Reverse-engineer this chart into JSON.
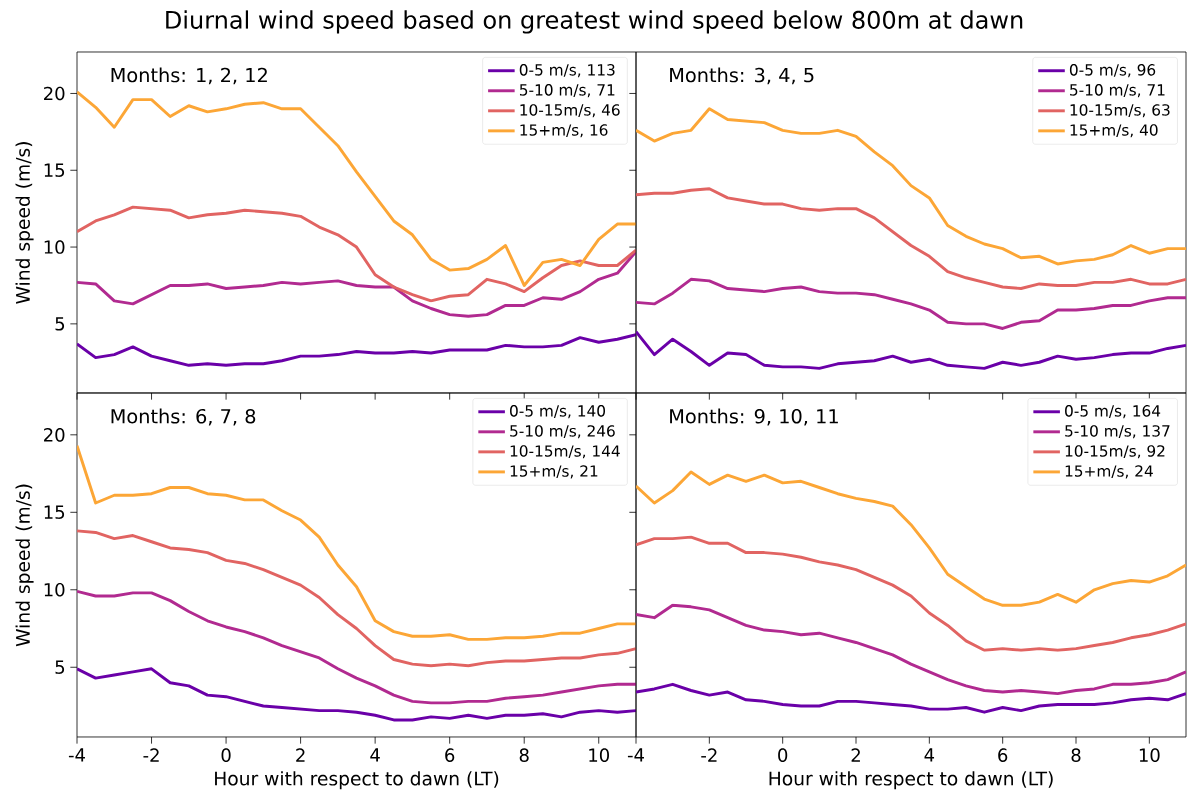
{
  "chart_data": [
    {
      "type": "line",
      "title": "Diurnal wind speed based on greatest wind speed below 800m at dawn",
      "ylabel": "Wind speed (m/s)",
      "annotations": [
        "Months: 1, 2, 12"
      ],
      "legend": "top right",
      "tick_labels": "y",
      "x": [
        -4,
        -3.5,
        -3,
        -2.5,
        -2,
        -1.5,
        -1,
        -0.5,
        0,
        0.5,
        1,
        1.5,
        2,
        2.5,
        3,
        3.5,
        4,
        4.5,
        5,
        5.5,
        6,
        6.5,
        7,
        7.5,
        8,
        8.5,
        9,
        9.5,
        10,
        10.5,
        11
      ],
      "xlim": [
        -4,
        11
      ],
      "ylim": [
        0.5,
        22.7
      ],
      "xticks": [
        -4,
        -2,
        0,
        2,
        4,
        6,
        8,
        10
      ],
      "yticks": [
        5,
        10,
        15,
        20
      ],
      "series": [
        {
          "name": "0-5 m/s, 113",
          "color": "#6a00a8",
          "values": [
            3.7,
            2.8,
            3.0,
            3.5,
            2.9,
            2.6,
            2.3,
            2.4,
            2.3,
            2.4,
            2.4,
            2.6,
            2.9,
            2.9,
            3.0,
            3.2,
            3.1,
            3.1,
            3.2,
            3.1,
            3.3,
            3.3,
            3.3,
            3.6,
            3.5,
            3.5,
            3.6,
            4.1,
            3.8,
            4.0,
            4.3
          ]
        },
        {
          "name": "5-10 m/s, 71",
          "color": "#b12a90",
          "values": [
            7.7,
            7.6,
            6.5,
            6.3,
            6.9,
            7.5,
            7.5,
            7.6,
            7.3,
            7.4,
            7.5,
            7.7,
            7.6,
            7.7,
            7.8,
            7.5,
            7.4,
            7.4,
            6.5,
            6.0,
            5.6,
            5.5,
            5.6,
            6.2,
            6.2,
            6.7,
            6.6,
            7.1,
            7.9,
            8.3,
            9.7
          ]
        },
        {
          "name": "10-15m/s, 46",
          "color": "#e16462",
          "values": [
            11.0,
            11.7,
            12.1,
            12.6,
            12.5,
            12.4,
            11.9,
            12.1,
            12.2,
            12.4,
            12.3,
            12.2,
            12.0,
            11.3,
            10.8,
            10.0,
            8.2,
            7.4,
            6.9,
            6.5,
            6.8,
            6.9,
            7.9,
            7.6,
            7.1,
            8.0,
            8.8,
            9.1,
            8.8,
            8.8,
            9.8
          ]
        },
        {
          "name": "15+m/s, 16",
          "color": "#fca636",
          "values": [
            20.1,
            19.1,
            17.8,
            19.6,
            19.6,
            18.5,
            19.2,
            18.8,
            19.0,
            19.3,
            19.4,
            19.0,
            19.0,
            17.8,
            16.6,
            14.9,
            13.3,
            11.7,
            10.8,
            9.2,
            8.5,
            8.6,
            9.2,
            10.1,
            7.5,
            9.0,
            9.2,
            8.8,
            10.5,
            11.5,
            11.5
          ]
        }
      ]
    },
    {
      "type": "line",
      "annotations": [
        "Months: 3, 4, 5"
      ],
      "legend": "top right",
      "tick_labels": false,
      "x": [
        -4,
        -3.5,
        -3,
        -2.5,
        -2,
        -1.5,
        -1,
        -0.5,
        0,
        0.5,
        1,
        1.5,
        2,
        2.5,
        3,
        3.5,
        4,
        4.5,
        5,
        5.5,
        6,
        6.5,
        7,
        7.5,
        8,
        8.5,
        9,
        9.5,
        10,
        10.5,
        11
      ],
      "xlim": [
        -4,
        11
      ],
      "ylim": [
        0.5,
        22.7
      ],
      "xticks": [
        -4,
        -2,
        0,
        2,
        4,
        6,
        8,
        10
      ],
      "yticks": [
        5,
        10,
        15,
        20
      ],
      "series": [
        {
          "name": "0-5 m/s, 96",
          "color": "#6a00a8",
          "values": [
            4.5,
            3.0,
            4.0,
            3.2,
            2.3,
            3.1,
            3.0,
            2.3,
            2.2,
            2.2,
            2.1,
            2.4,
            2.5,
            2.6,
            2.9,
            2.5,
            2.7,
            2.3,
            2.2,
            2.1,
            2.5,
            2.3,
            2.5,
            2.9,
            2.7,
            2.8,
            3.0,
            3.1,
            3.1,
            3.4,
            3.6
          ]
        },
        {
          "name": "5-10 m/s, 71",
          "color": "#b12a90",
          "values": [
            6.4,
            6.3,
            7.0,
            7.9,
            7.8,
            7.3,
            7.2,
            7.1,
            7.3,
            7.4,
            7.1,
            7.0,
            7.0,
            6.9,
            6.6,
            6.3,
            5.9,
            5.1,
            5.0,
            5.0,
            4.7,
            5.1,
            5.2,
            5.9,
            5.9,
            6.0,
            6.2,
            6.2,
            6.5,
            6.7,
            6.7
          ]
        },
        {
          "name": "10-15m/s, 63",
          "color": "#e16462",
          "values": [
            13.4,
            13.5,
            13.5,
            13.7,
            13.8,
            13.2,
            13.0,
            12.8,
            12.8,
            12.5,
            12.4,
            12.5,
            12.5,
            11.9,
            11.0,
            10.1,
            9.4,
            8.4,
            8.0,
            7.7,
            7.4,
            7.3,
            7.6,
            7.5,
            7.5,
            7.7,
            7.7,
            7.9,
            7.6,
            7.6,
            7.9
          ]
        },
        {
          "name": "15+m/s, 40",
          "color": "#fca636",
          "values": [
            17.6,
            16.9,
            17.4,
            17.6,
            19.0,
            18.3,
            18.2,
            18.1,
            17.6,
            17.4,
            17.4,
            17.6,
            17.2,
            16.2,
            15.3,
            14.0,
            13.2,
            11.4,
            10.7,
            10.2,
            9.9,
            9.3,
            9.4,
            8.9,
            9.1,
            9.2,
            9.5,
            10.1,
            9.6,
            9.9,
            9.9
          ]
        }
      ]
    },
    {
      "type": "line",
      "xlabel": "Hour with respect to dawn (LT)",
      "ylabel": "Wind speed (m/s)",
      "annotations": [
        "Months: 6, 7, 8"
      ],
      "legend": "top right",
      "x": [
        -4,
        -3.5,
        -3,
        -2.5,
        -2,
        -1.5,
        -1,
        -0.5,
        0,
        0.5,
        1,
        1.5,
        2,
        2.5,
        3,
        3.5,
        4,
        4.5,
        5,
        5.5,
        6,
        6.5,
        7,
        7.5,
        8,
        8.5,
        9,
        9.5,
        10,
        10.5,
        11
      ],
      "xlim": [
        -4,
        11
      ],
      "ylim": [
        0.5,
        22.7
      ],
      "xticks": [
        -4,
        -2,
        0,
        2,
        4,
        6,
        8,
        10
      ],
      "yticks": [
        5,
        10,
        15,
        20
      ],
      "series": [
        {
          "name": "0-5 m/s, 140",
          "color": "#6a00a8",
          "values": [
            4.9,
            4.3,
            4.5,
            4.7,
            4.9,
            4.0,
            3.8,
            3.2,
            3.1,
            2.8,
            2.5,
            2.4,
            2.3,
            2.2,
            2.2,
            2.1,
            1.9,
            1.6,
            1.6,
            1.8,
            1.7,
            1.9,
            1.7,
            1.9,
            1.9,
            2.0,
            1.8,
            2.1,
            2.2,
            2.1,
            2.2
          ]
        },
        {
          "name": "5-10 m/s, 246",
          "color": "#b12a90",
          "values": [
            9.9,
            9.6,
            9.6,
            9.8,
            9.8,
            9.3,
            8.6,
            8.0,
            7.6,
            7.3,
            6.9,
            6.4,
            6.0,
            5.6,
            4.9,
            4.3,
            3.8,
            3.2,
            2.8,
            2.7,
            2.7,
            2.8,
            2.8,
            3.0,
            3.1,
            3.2,
            3.4,
            3.6,
            3.8,
            3.9,
            3.9
          ]
        },
        {
          "name": "10-15m/s, 144",
          "color": "#e16462",
          "values": [
            13.8,
            13.7,
            13.3,
            13.5,
            13.1,
            12.7,
            12.6,
            12.4,
            11.9,
            11.7,
            11.3,
            10.8,
            10.3,
            9.5,
            8.4,
            7.5,
            6.4,
            5.5,
            5.2,
            5.1,
            5.2,
            5.1,
            5.3,
            5.4,
            5.4,
            5.5,
            5.6,
            5.6,
            5.8,
            5.9,
            6.2
          ]
        },
        {
          "name": "15+m/s, 21",
          "color": "#fca636",
          "values": [
            19.3,
            15.6,
            16.1,
            16.1,
            16.2,
            16.6,
            16.6,
            16.2,
            16.1,
            15.8,
            15.8,
            15.1,
            14.5,
            13.4,
            11.6,
            10.2,
            8.0,
            7.3,
            7.0,
            7.0,
            7.1,
            6.8,
            6.8,
            6.9,
            6.9,
            7.0,
            7.2,
            7.2,
            7.5,
            7.8,
            7.8
          ]
        }
      ]
    },
    {
      "type": "line",
      "xlabel": "Hour with respect to dawn (LT)",
      "annotations": [
        "Months: 9, 10, 11"
      ],
      "legend": "top right",
      "tick_labels": "x",
      "x": [
        -4,
        -3.5,
        -3,
        -2.5,
        -2,
        -1.5,
        -1,
        -0.5,
        0,
        0.5,
        1,
        1.5,
        2,
        2.5,
        3,
        3.5,
        4,
        4.5,
        5,
        5.5,
        6,
        6.5,
        7,
        7.5,
        8,
        8.5,
        9,
        9.5,
        10,
        10.5,
        11
      ],
      "xlim": [
        -4,
        11
      ],
      "ylim": [
        0.5,
        22.7
      ],
      "xticks": [
        -4,
        -2,
        0,
        2,
        4,
        6,
        8,
        10
      ],
      "yticks": [
        5,
        10,
        15,
        20
      ],
      "series": [
        {
          "name": "0-5 m/s, 164",
          "color": "#6a00a8",
          "values": [
            3.4,
            3.6,
            3.9,
            3.5,
            3.2,
            3.4,
            2.9,
            2.8,
            2.6,
            2.5,
            2.5,
            2.8,
            2.8,
            2.7,
            2.6,
            2.5,
            2.3,
            2.3,
            2.4,
            2.1,
            2.4,
            2.2,
            2.5,
            2.6,
            2.6,
            2.6,
            2.7,
            2.9,
            3.0,
            2.9,
            3.3
          ]
        },
        {
          "name": "5-10 m/s, 137",
          "color": "#b12a90",
          "values": [
            8.4,
            8.2,
            9.0,
            8.9,
            8.7,
            8.2,
            7.7,
            7.4,
            7.3,
            7.1,
            7.2,
            6.9,
            6.6,
            6.2,
            5.8,
            5.2,
            4.7,
            4.2,
            3.8,
            3.5,
            3.4,
            3.5,
            3.4,
            3.3,
            3.5,
            3.6,
            3.9,
            3.9,
            4.0,
            4.2,
            4.7
          ]
        },
        {
          "name": "10-15m/s, 92",
          "color": "#e16462",
          "values": [
            12.9,
            13.3,
            13.3,
            13.4,
            13.0,
            13.0,
            12.4,
            12.4,
            12.3,
            12.1,
            11.8,
            11.6,
            11.3,
            10.8,
            10.3,
            9.6,
            8.5,
            7.7,
            6.7,
            6.1,
            6.2,
            6.1,
            6.2,
            6.1,
            6.2,
            6.4,
            6.6,
            6.9,
            7.1,
            7.4,
            7.8
          ]
        },
        {
          "name": "15+m/s, 24",
          "color": "#fca636",
          "values": [
            16.7,
            15.6,
            16.4,
            17.6,
            16.8,
            17.4,
            17.0,
            17.4,
            16.9,
            17.0,
            16.6,
            16.2,
            15.9,
            15.7,
            15.4,
            14.2,
            12.7,
            11.0,
            10.2,
            9.4,
            9.0,
            9.0,
            9.2,
            9.7,
            9.2,
            10.0,
            10.4,
            10.6,
            10.5,
            10.9,
            11.6
          ]
        }
      ]
    }
  ]
}
